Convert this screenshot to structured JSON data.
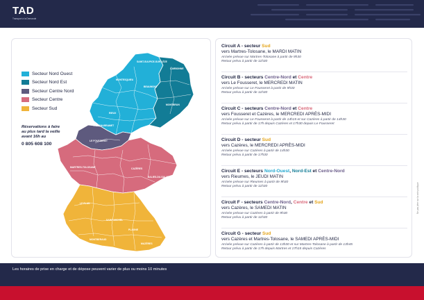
{
  "brand": {
    "name": "TAD",
    "tagline": "Transport à la Demande"
  },
  "colors": {
    "nord_ouest": "#22b0d8",
    "nord_est": "#127c96",
    "centre_nord": "#5e5a7e",
    "centre": "#d66b7d",
    "sud": "#f0b43a",
    "navy": "#23294a",
    "red": "#c8102e"
  },
  "legend": [
    {
      "label": "Secteur Nord Ouest",
      "color": "#22b0d8"
    },
    {
      "label": "Secteur Nord Est",
      "color": "#127c96"
    },
    {
      "label": "Secteur Centre Nord",
      "color": "#5e5a7e"
    },
    {
      "label": "Secteur Centre",
      "color": "#d66b7d"
    },
    {
      "label": "Secteur Sud",
      "color": "#f0b43a"
    }
  ],
  "reservation": {
    "line1": "Réservations à faire",
    "line2": "au plus tard la veille",
    "line3": "avant 16h au",
    "phone": "0 805 608 100"
  },
  "towns": {
    "t1": "SAINT-SULPICE-SUR-LÈZE",
    "t2": "CARBONNE",
    "t3": "MONTESQUIEU",
    "t4": "BEAUMONT",
    "t5": "MONTBRUN",
    "t6": "RIEUX",
    "t7": "LE FOUSSERET",
    "t8": "MARTRES-TOLOSANE",
    "t9": "CAZÈRES",
    "t10": "SALIES-DU-SALAT",
    "t11": "LE PLAN",
    "t12": "SAINT-MICHEL",
    "t13": "PLAGNE",
    "t14": "MONTBERAUD",
    "t15": "MAZÈRES",
    "t16": "POUCHARRAMET"
  },
  "circuits": [
    {
      "title_pre": "Circuit A - secteur ",
      "sector1": "Sud",
      "sep1": "",
      "sector2": "",
      "sep2": "",
      "sector3": "",
      "destination": "vers Martres-Tolosane, le MARDI MATIN",
      "info1": "Arrivée prévue sur Martres-Tolosane à partir de 9h30",
      "info2": "Retour prévu à partir de 11h30"
    },
    {
      "title_pre": "Circuit B - secteurs ",
      "sector1": "Centre-Nord",
      "sep1": " et ",
      "sector2": "Centre",
      "sep2": "",
      "sector3": "",
      "destination": "vers Le Fousseret, le MERCREDI MATIN",
      "info1": "Arrivée prévue sur Le Fousseret à partir de 9h30",
      "info2": "Retour prévu à partir de 11h30"
    },
    {
      "title_pre": "Circuit C - secteurs ",
      "sector1": "Centre-Nord",
      "sep1": " et ",
      "sector2": "Centre",
      "sep2": "",
      "sector3": "",
      "destination": "vers Fousseret et Cazères, le MERCREDI APRÈS-MIDI",
      "info1": "Arrivée prévue sur Le Fousseret à partir de 14h15 et sur Cazères à partir de 14h30",
      "info2": "Retour prévu à partir de 17h depuis Cazères et 17h30 depuis Le Fousseret"
    },
    {
      "title_pre": "Circuit D - secteur ",
      "sector1": "Sud",
      "sep1": "",
      "sector2": "",
      "sep2": "",
      "sector3": "",
      "destination": "vers Cazères, le MERCREDI APRÈS-MIDI",
      "info1": "Arrivée prévue sur Cazères à partir de 14h30",
      "info2": "Retour prévu à partir de 17h30"
    },
    {
      "title_pre": "Circuit E - secteurs ",
      "sector1": "Nord-Ouest",
      "sep1": ", ",
      "sector2": "Nord-Est",
      "sep2": " et ",
      "sector3": "Centre-Nord",
      "destination": "vers Rieumes, le JEUDI MATIN",
      "info1": "Arrivée prévue sur Rieumes à partir de 9h30",
      "info2": "Retour prévu à partir de 11h30"
    },
    {
      "title_pre": "Circuit F - secteurs ",
      "sector1": "Centre-Nord",
      "sep1": ", ",
      "sector2": "Centre",
      "sep2": " et ",
      "sector3": "Sud",
      "destination": "vers Cazères, le SAMEDI MATIN",
      "info1": "Arrivée prévue sur Cazères à partir de 9h30",
      "info2": "Retour prévu à partir de 11h30"
    },
    {
      "title_pre": "Circuit G - secteur ",
      "sector1": "Sud",
      "sep1": "",
      "sector2": "",
      "sep2": "",
      "sector3": "",
      "destination": "vers Cazères et Martres-Tolosane, le SAMEDI APRÈS-MIDI",
      "info1": "Arrivée prévue sur Cazères à partir de 13h30 et sur Martres-Tolosane à partir de 13h45",
      "info2": "Retour prévu à partir de 17h depuis Martres et 17h15 depuis Cazères"
    }
  ],
  "footer": {
    "note": "Les horaires de prise en charge et de dépose peuvent varier de plus ou moins 10 minutes"
  },
  "vertical_note": "Ne pas jeter sur la voie publique"
}
